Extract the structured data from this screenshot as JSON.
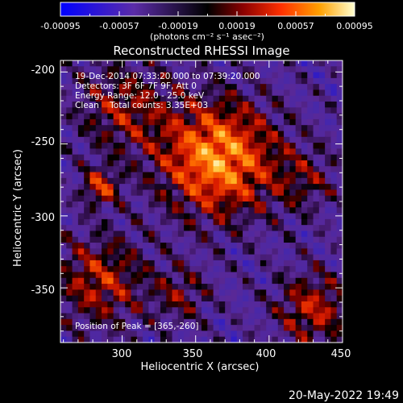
{
  "chart_data": {
    "type": "heatmap",
    "title": "Reconstructed RHESSI Image",
    "xlabel": "Heliocentric X (arcsec)",
    "ylabel": "Heliocentric Y (arcsec)",
    "xlim": [
      258,
      450
    ],
    "ylim": [
      -388,
      -192
    ],
    "x_ticks": [
      300,
      350,
      400,
      450
    ],
    "y_ticks": [
      -200,
      -250,
      -300,
      -350
    ],
    "colorbar": {
      "min": -0.00095,
      "max": 0.00095,
      "ticks": [
        "-0.00095",
        "-0.00057",
        "-0.00019",
        "0.00019",
        "0.00057",
        "0.00095"
      ],
      "unit_label": "(photons cm⁻² s⁻¹ asec⁻²)"
    },
    "annotations": [
      "19-Dec-2014 07:33:20.000 to 07:39:20.000",
      "Detectors: 3F 6F 7F 9F, Att 0",
      "Energy Range: 12.0 - 25.0 keV",
      "Clean    Total counts: 3.35E+03"
    ],
    "peak": {
      "x": 365,
      "y": -260,
      "label": "Position of Peak = [365,-260]"
    },
    "sources": [
      {
        "x": 365,
        "y": -260,
        "peak": 0.00095,
        "sigma": 28
      },
      {
        "x": 285,
        "y": -280,
        "peak": 0.0006,
        "sigma": 9
      },
      {
        "x": 300,
        "y": -225,
        "peak": 0.00045,
        "sigma": 22
      },
      {
        "x": 285,
        "y": -345,
        "peak": 0.00055,
        "sigma": 22
      },
      {
        "x": 430,
        "y": -365,
        "peak": 0.00055,
        "sigma": 18
      },
      {
        "x": 340,
        "y": -355,
        "peak": 0.00035,
        "sigma": 14
      },
      {
        "x": 425,
        "y": -275,
        "peak": 0.0003,
        "sigma": 16
      }
    ],
    "grid": false
  },
  "footer": {
    "date": "20-May-2022 19:49"
  }
}
